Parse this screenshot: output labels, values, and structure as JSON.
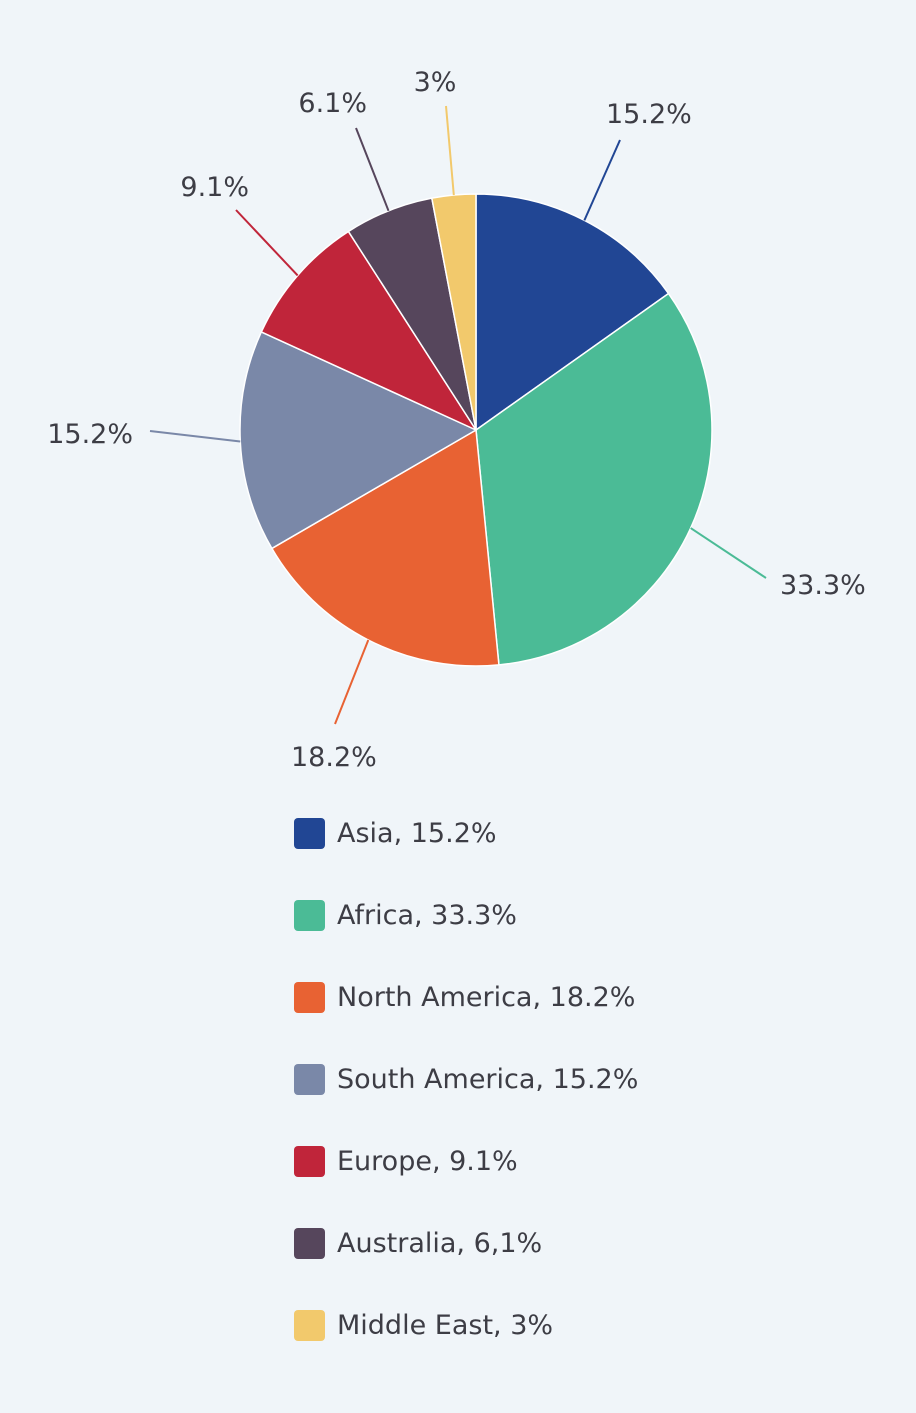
{
  "chart_data": {
    "type": "pie",
    "title": "",
    "legend_position": "bottom",
    "slices": [
      {
        "name": "Asia",
        "value": 15.2,
        "label": "15.2%",
        "legend": "Asia, 15.2%",
        "color": "#214694"
      },
      {
        "name": "Africa",
        "value": 33.3,
        "label": "33.3%",
        "legend": "Africa, 33.3%",
        "color": "#4bbb96"
      },
      {
        "name": "North America",
        "value": 18.2,
        "label": "18.2%",
        "legend": "North America, 18.2%",
        "color": "#e86233"
      },
      {
        "name": "South America",
        "value": 15.2,
        "label": "15.2%",
        "legend": "South America, 15.2%",
        "color": "#7a88a8"
      },
      {
        "name": "Europe",
        "value": 9.1,
        "label": "9.1%",
        "legend": "Europe, 9.1%",
        "color": "#c0253a"
      },
      {
        "name": "Australia",
        "value": 6.1,
        "label": "6.1%",
        "legend": "Australia, 6,1%",
        "color": "#56465c"
      },
      {
        "name": "Middle East",
        "value": 3,
        "label": "3%",
        "legend": "Middle East, 3%",
        "color": "#f2c96c"
      }
    ]
  }
}
